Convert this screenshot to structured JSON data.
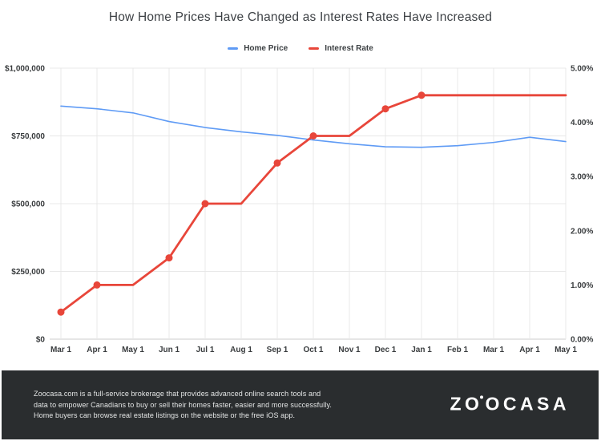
{
  "title": "How Home Prices Have Changed as Interest Rates Have Increased",
  "legend": [
    {
      "label": "Home Price",
      "color": "#5f9bf5"
    },
    {
      "label": "Interest Rate",
      "color": "#e8463a"
    }
  ],
  "chart_data": {
    "type": "line",
    "title": "How Home Prices Have Changed as Interest Rates Have Increased",
    "categories": [
      "Mar 1",
      "Apr 1",
      "May 1",
      "Jun 1",
      "Jul 1",
      "Aug 1",
      "Sep 1",
      "Oct 1",
      "Nov 1",
      "Dec 1",
      "Jan 1",
      "Feb 1",
      "Mar 1",
      "Apr 1",
      "May 1"
    ],
    "series": [
      {
        "name": "Home Price",
        "axis": "left",
        "color": "#5f9bf5",
        "line_width": 1.6,
        "markers": false,
        "values": [
          860000,
          850000,
          835000,
          803000,
          781000,
          765000,
          752000,
          735000,
          721000,
          710000,
          708000,
          714000,
          726000,
          745000,
          729000
        ]
      },
      {
        "name": "Interest Rate",
        "axis": "right",
        "color": "#e8463a",
        "line_width": 2.8,
        "markers": true,
        "values": [
          0.5,
          1.0,
          1.0,
          1.5,
          2.5,
          2.5,
          3.25,
          3.75,
          3.75,
          4.25,
          4.5,
          4.5,
          4.5,
          4.5,
          4.5
        ],
        "marker_indices": [
          0,
          1,
          3,
          4,
          6,
          7,
          9,
          10
        ]
      }
    ],
    "left_axis": {
      "tick_labels": [
        "$0",
        "$250,000",
        "$500,000",
        "$750,000",
        "$1,000,000"
      ],
      "tick_values": [
        0,
        250000,
        500000,
        750000,
        1000000
      ],
      "min": 0,
      "max": 1000000
    },
    "right_axis": {
      "tick_labels": [
        "0.00%",
        "1.00%",
        "2.00%",
        "3.00%",
        "4.00%",
        "5.00%"
      ],
      "tick_values": [
        0,
        1,
        2,
        3,
        4,
        5
      ],
      "min": 0,
      "max": 5
    },
    "grid": true,
    "legend_position": "top"
  },
  "styles": {
    "grid_color": "#e8e8e8",
    "axis_line_color": "#cccccc",
    "axis_text_color": "#393c3e",
    "marker_radius": 4.5
  },
  "footer": {
    "line1": "Zoocasa.com is a full-service brokerage that provides advanced online search tools and",
    "line2": "data to empower Canadians to buy or sell their homes faster, easier and more successfully.",
    "line3": "Home buyers can browse real estate listings on the website or the free iOS app.",
    "logo_part1": "ZO",
    "logo_part2": "OCASA"
  }
}
